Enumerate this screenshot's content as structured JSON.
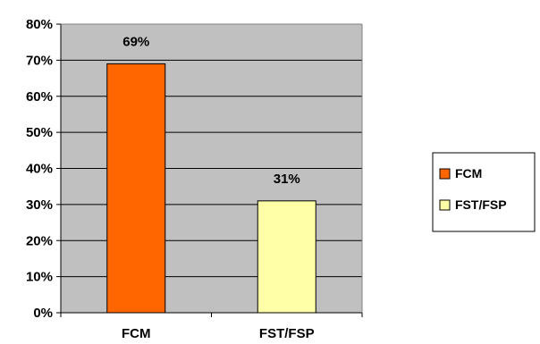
{
  "chart_data": {
    "type": "bar",
    "categories": [
      "FCM",
      "FST/FSP"
    ],
    "values": [
      69,
      31
    ],
    "data_labels": [
      "69%",
      "31%"
    ],
    "colors": [
      "#FF6600",
      "#FFFFA8"
    ],
    "y_tick_labels": [
      "0%",
      "10%",
      "20%",
      "30%",
      "40%",
      "50%",
      "60%",
      "70%",
      "80%"
    ],
    "ylim": [
      0,
      80
    ],
    "y_tick_step": 10,
    "grid": true,
    "plot_background": "#C0C0C0",
    "legend": {
      "position": "right",
      "entries": [
        "FCM",
        "FST/FSP"
      ]
    }
  }
}
